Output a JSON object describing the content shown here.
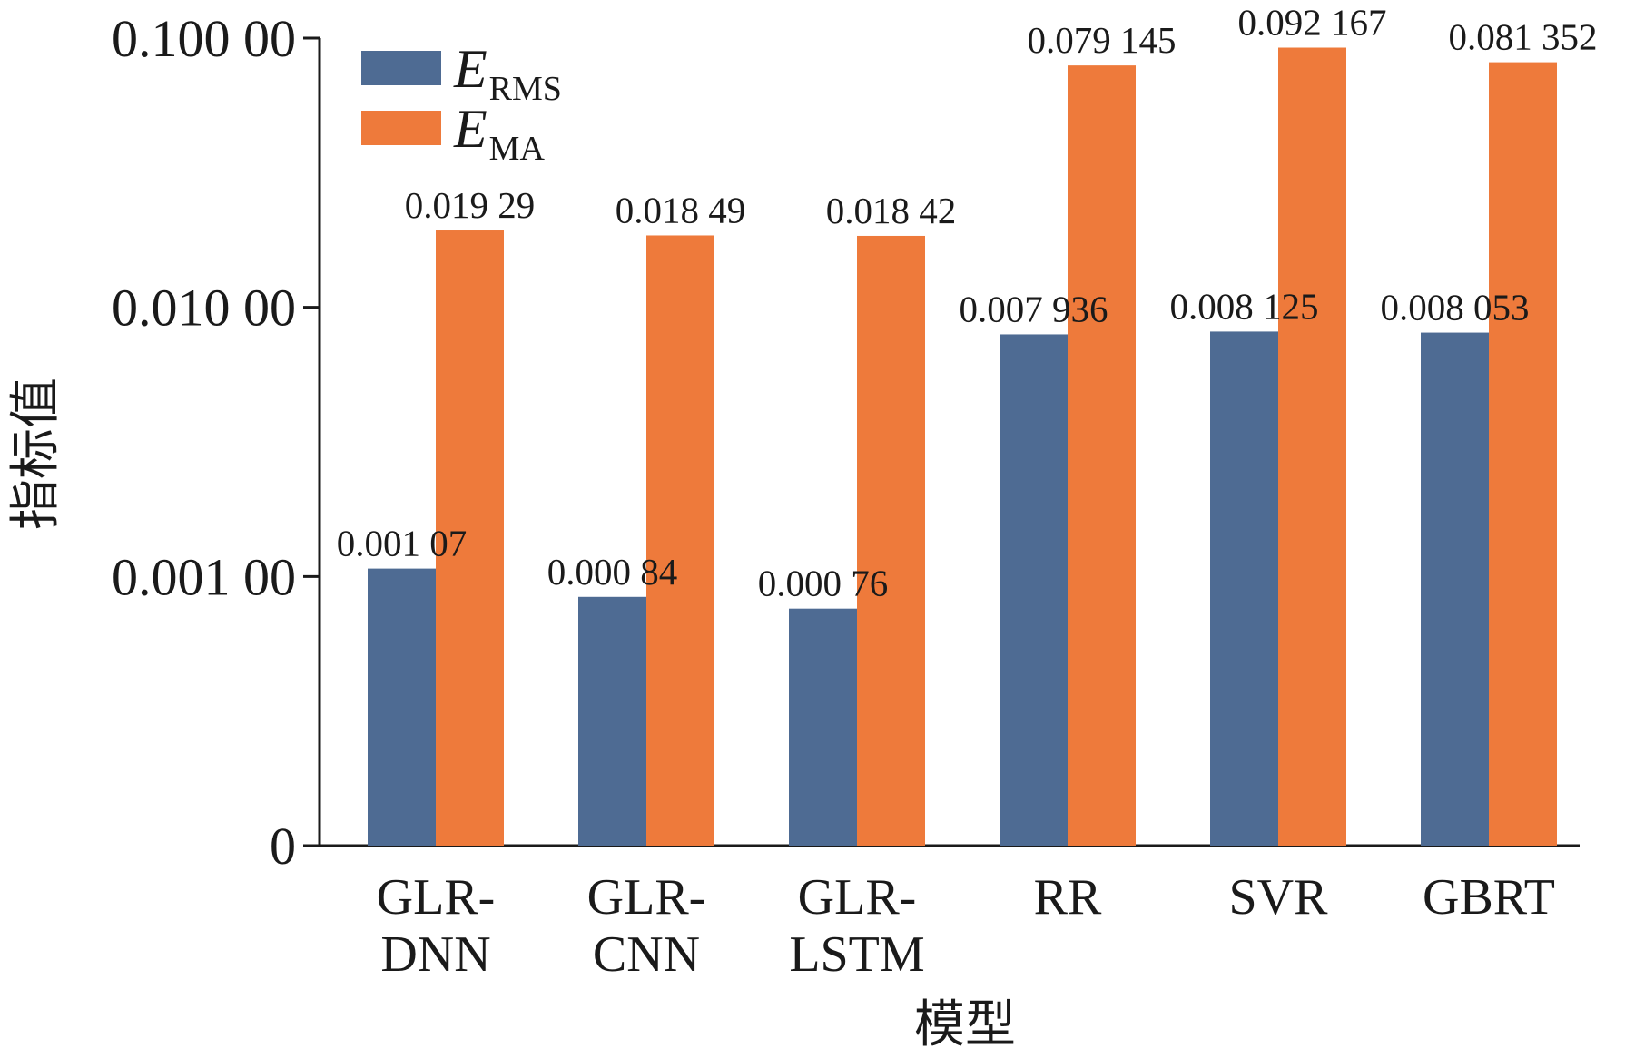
{
  "chart_data": {
    "type": "bar",
    "scale": "log",
    "xlabel": "模型",
    "ylabel": "指标值",
    "yticks": [
      {
        "value": 0.0001,
        "label": "0"
      },
      {
        "value": 0.001,
        "label": "0.001 00"
      },
      {
        "value": 0.01,
        "label": "0.010 00"
      },
      {
        "value": 0.1,
        "label": "0.100 00"
      }
    ],
    "ylim": [
      0.0001,
      0.1
    ],
    "categories": [
      {
        "lines": [
          "GLR-",
          "DNN"
        ]
      },
      {
        "lines": [
          "GLR-",
          "CNN"
        ]
      },
      {
        "lines": [
          "GLR-",
          "LSTM"
        ]
      },
      {
        "lines": [
          "RR"
        ]
      },
      {
        "lines": [
          "SVR"
        ]
      },
      {
        "lines": [
          "GBRT"
        ]
      }
    ],
    "legend": {
      "position": "top-left"
    },
    "series": [
      {
        "name": "ERMS",
        "name_main": "E",
        "name_sub": "RMS",
        "color": "#4e6b93",
        "values": [
          0.00107,
          0.00084,
          0.00076,
          0.007936,
          0.008125,
          0.008053
        ],
        "labels": [
          "0.001 07",
          "0.000 84",
          "0.000 76",
          "0.007 936",
          "0.008 125",
          "0.008 053"
        ]
      },
      {
        "name": "EMA",
        "name_main": "E",
        "name_sub": "MA",
        "color": "#ee7a3b",
        "values": [
          0.01929,
          0.01849,
          0.01842,
          0.079145,
          0.092167,
          0.081352
        ],
        "labels": [
          "0.019 29",
          "0.018 49",
          "0.018 42",
          "0.079 145",
          "0.092 167",
          "0.081 352"
        ]
      }
    ]
  }
}
